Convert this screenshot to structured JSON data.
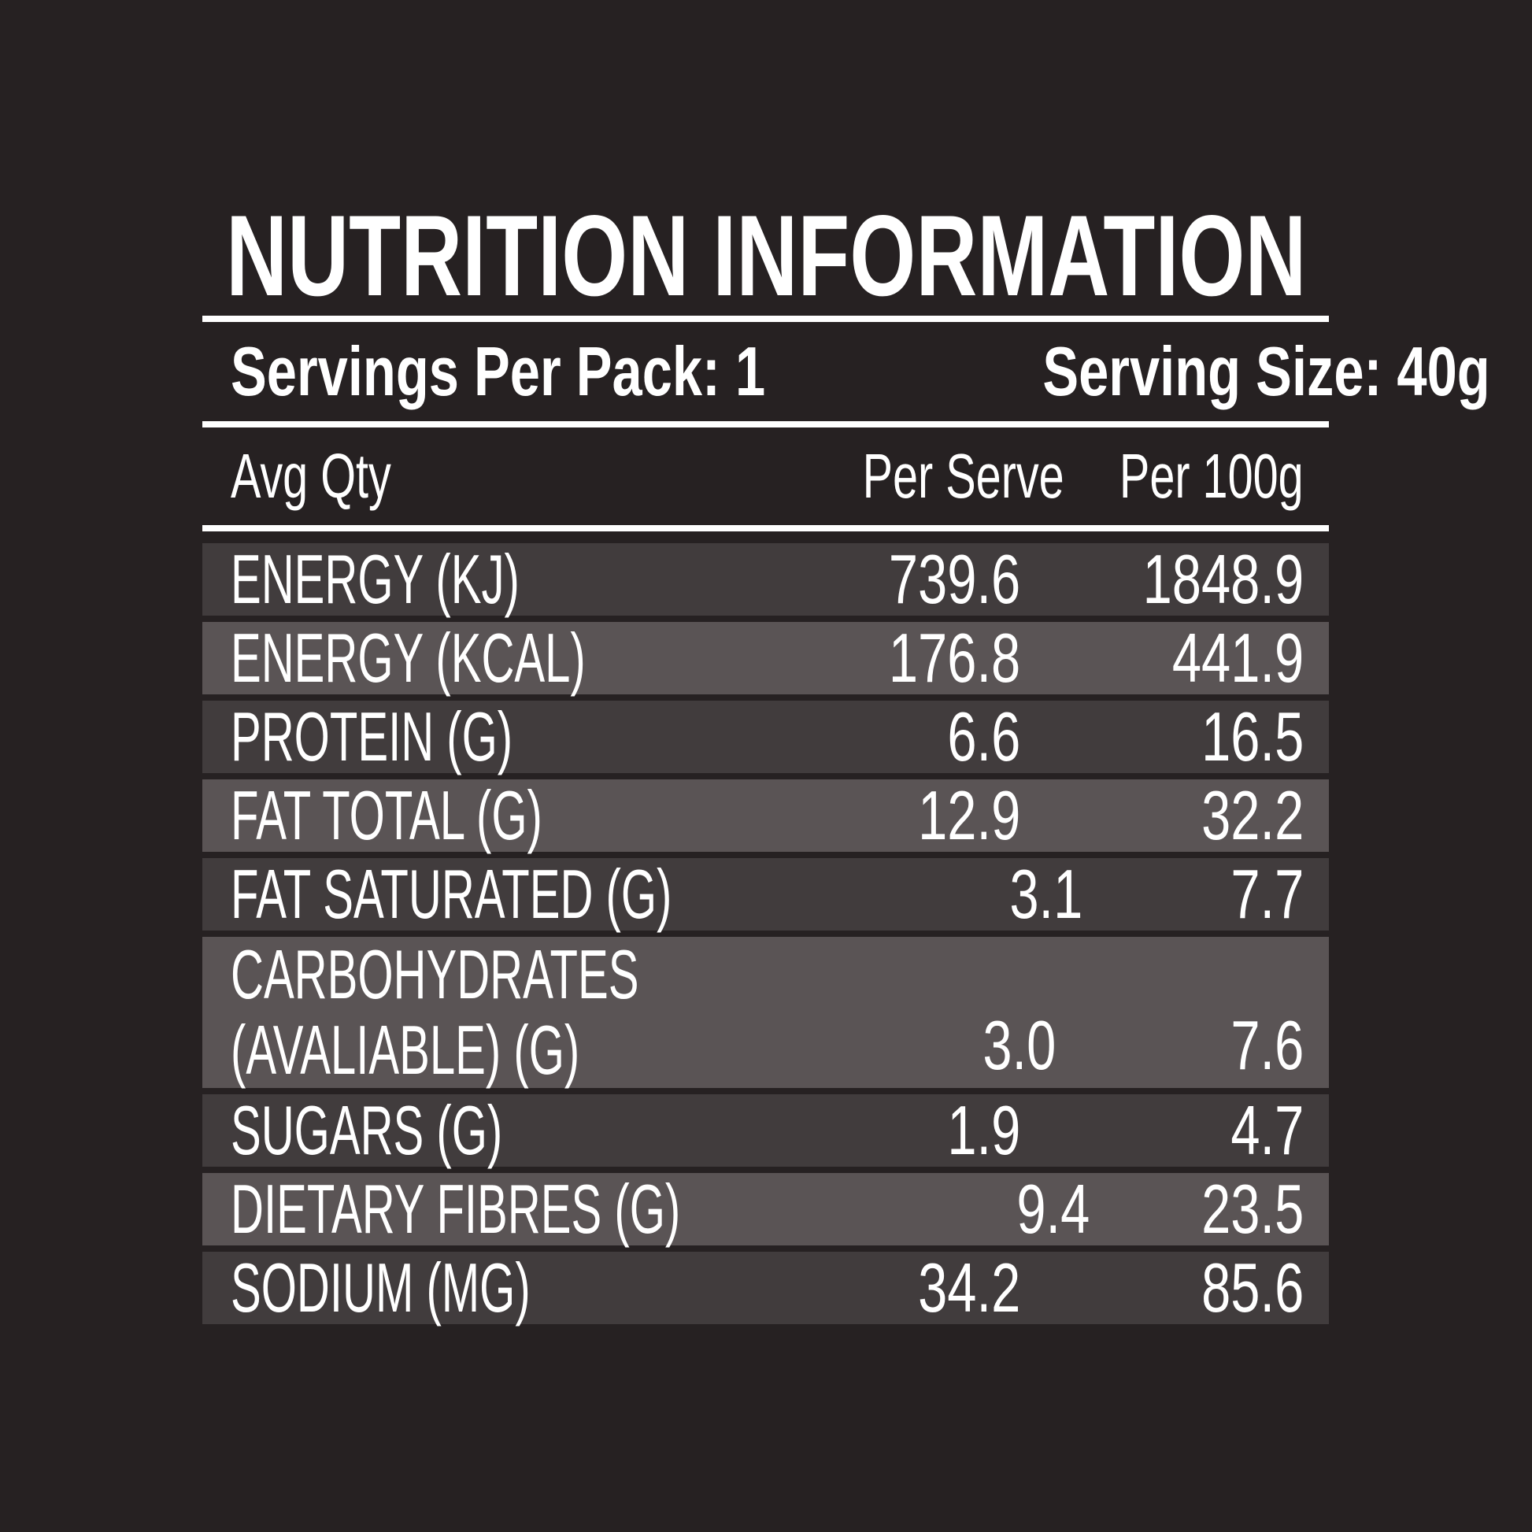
{
  "colors": {
    "background": "#262122",
    "row_dark": "#413c3d",
    "row_light": "#5a5455",
    "text": "#ffffff",
    "divider": "#ffffff"
  },
  "title": "NUTRITION INFORMATION",
  "serving_info": {
    "servings_per_pack": "Servings Per Pack: 1",
    "serving_size": "Serving Size: 40g"
  },
  "table": {
    "columns": {
      "label": "Avg Qty",
      "per_serve": "Per Serve",
      "per_100g": "Per 100g"
    },
    "rows": [
      {
        "label": "ENERGY (KJ)",
        "per_serve": "739.6",
        "per_100g": "1848.9"
      },
      {
        "label": "ENERGY (KCAL)",
        "per_serve": "176.8",
        "per_100g": "441.9"
      },
      {
        "label": "PROTEIN (G)",
        "per_serve": "6.6",
        "per_100g": "16.5"
      },
      {
        "label": "FAT TOTAL (G)",
        "per_serve": "12.9",
        "per_100g": "32.2"
      },
      {
        "label": "FAT SATURATED (G)",
        "per_serve": "3.1",
        "per_100g": "7.7"
      },
      {
        "label_line1": "CARBOHYDRATES",
        "label_line2": "(AVALIABLE) (G)",
        "per_serve": "3.0",
        "per_100g": "7.6"
      },
      {
        "label": "SUGARS (G)",
        "per_serve": "1.9",
        "per_100g": "4.7"
      },
      {
        "label": "DIETARY FIBRES (G)",
        "per_serve": "9.4",
        "per_100g": "23.5"
      },
      {
        "label": "SODIUM (MG)",
        "per_serve": "34.2",
        "per_100g": "85.6"
      }
    ]
  }
}
